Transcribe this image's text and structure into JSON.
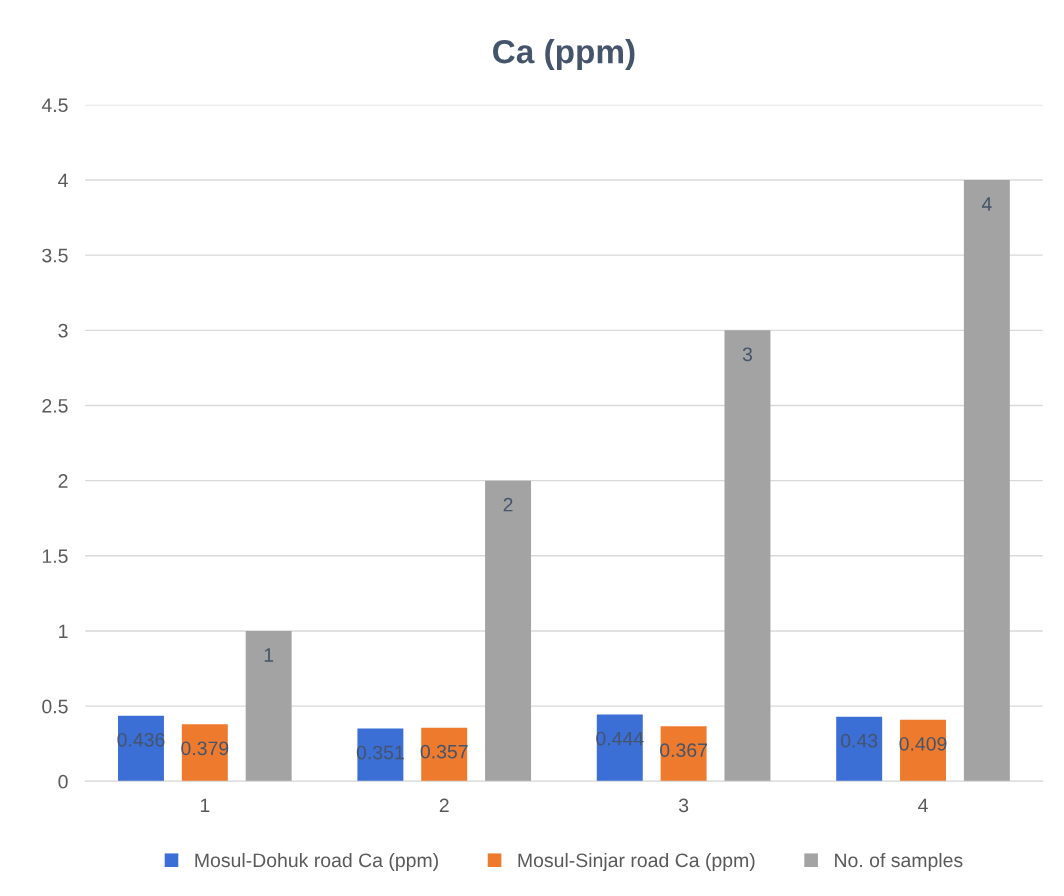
{
  "chart_data": {
    "type": "bar",
    "title": "Ca (ppm)",
    "categories": [
      "1",
      "2",
      "3",
      "4"
    ],
    "series": [
      {
        "name": "Mosul-Dohuk road Ca (ppm)",
        "color": "#3b6fd6",
        "values": [
          0.436,
          0.351,
          0.444,
          0.43
        ]
      },
      {
        "name": "Mosul-Sinjar road Ca (ppm)",
        "color": "#ee7a2e",
        "values": [
          0.379,
          0.357,
          0.367,
          0.409
        ]
      },
      {
        "name": "No. of samples",
        "color": "#a3a3a3",
        "values": [
          1,
          2,
          3,
          4
        ]
      }
    ],
    "ylim": [
      0,
      4.5
    ],
    "yticks": [
      0,
      0.5,
      1,
      1.5,
      2,
      2.5,
      3,
      3.5,
      4,
      4.5
    ],
    "grid": "y",
    "legend": "bottom",
    "data_labels": true
  }
}
